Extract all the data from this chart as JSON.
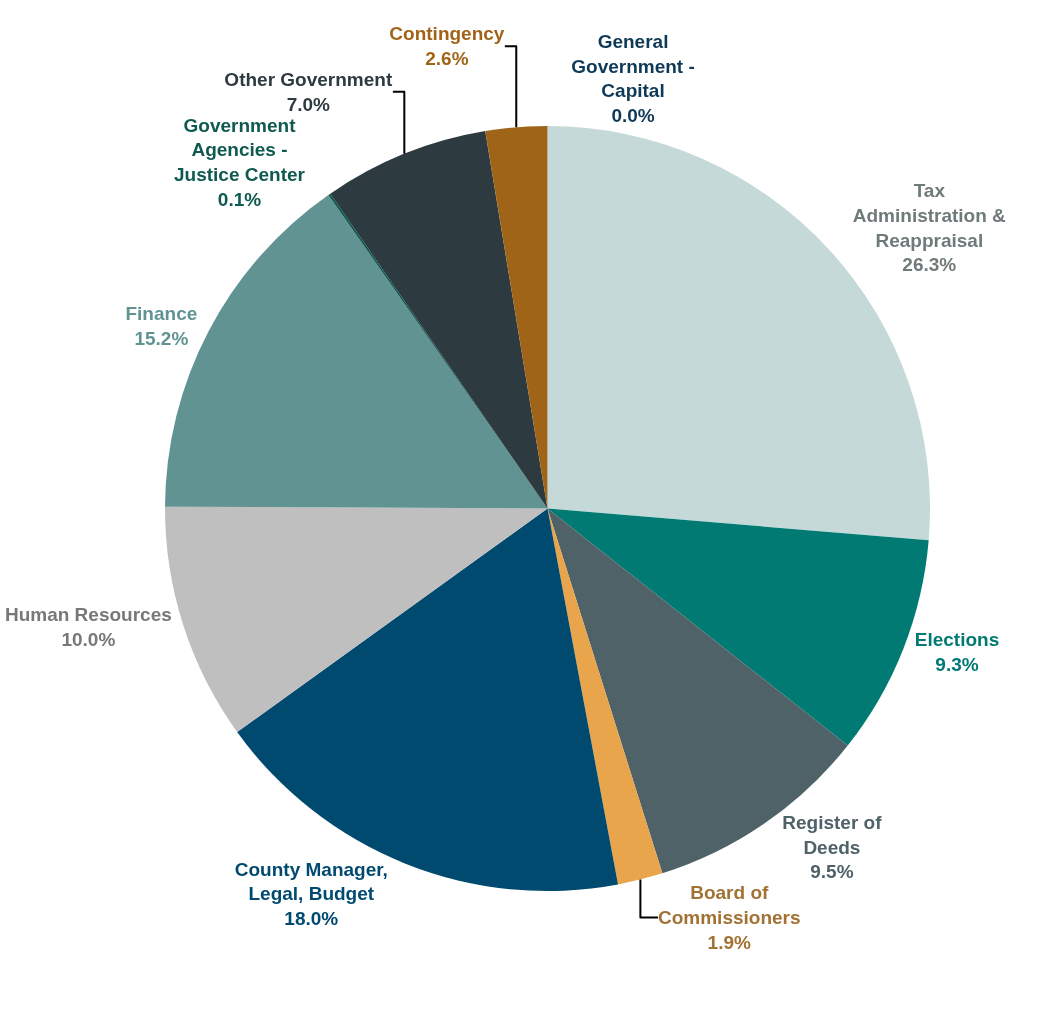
{
  "chart_data": {
    "type": "pie",
    "categories": [
      "Tax Administration & Reappraisal",
      "Elections",
      "Register of Deeds",
      "Board of Commissioners",
      "County Manager, Legal, Budget",
      "Human Resources",
      "Finance",
      "Government Agencies - Justice Center",
      "Other Government",
      "Contingency",
      "General Government - Capital"
    ],
    "values": [
      26.3,
      9.3,
      9.5,
      1.9,
      18.0,
      10.0,
      15.2,
      0.1,
      7.0,
      2.6,
      0.0
    ],
    "value_labels": [
      "26.3%",
      "9.3%",
      "9.5%",
      "1.9%",
      "18.0%",
      "10.0%",
      "15.2%",
      "0.1%",
      "7.0%",
      "2.6%",
      "0.0%"
    ],
    "colors": [
      "#c5d9d9",
      "#007a73",
      "#4f6268",
      "#e8a54b",
      "#004a70",
      "#bfbfbf",
      "#619393",
      "#0f5a50",
      "#2d3a40",
      "#a06418",
      "#0f3a57"
    ],
    "legend": false
  }
}
